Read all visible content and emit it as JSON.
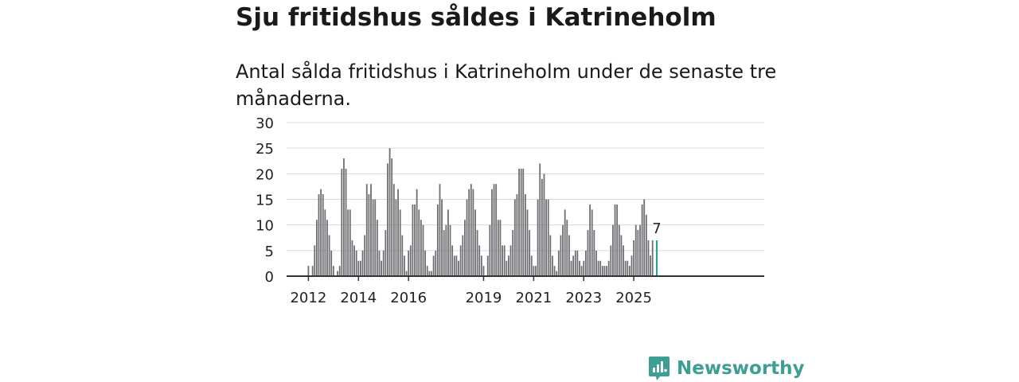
{
  "title": "Sju fritidshus såldes i Katrineholm",
  "subtitle": "Antal sålda fritidshus i Katrineholm under de senaste tre månaderna.",
  "brand": {
    "name": "Newsworthy",
    "icon": "newsworthy-logo-icon",
    "color": "#3d9e95"
  },
  "chart_data": {
    "type": "bar",
    "title": "Sju fritidshus såldes i Katrineholm",
    "subtitle": "Antal sålda fritidshus i Katrineholm under de senaste tre månaderna.",
    "xlabel": "",
    "ylabel": "",
    "ylim": [
      0,
      30
    ],
    "yticks": [
      0,
      5,
      10,
      15,
      20,
      25,
      30
    ],
    "xticks": [
      {
        "label": "2012",
        "at": "2012-01"
      },
      {
        "label": "2014",
        "at": "2014-01"
      },
      {
        "label": "2016",
        "at": "2016-01"
      },
      {
        "label": "2019",
        "at": "2019-01"
      },
      {
        "label": "2021",
        "at": "2021-01"
      },
      {
        "label": "2023",
        "at": "2023-01"
      },
      {
        "label": "2025",
        "at": "2025-01"
      }
    ],
    "grid": true,
    "bar_color": "#6e6e73",
    "highlight_color": "#2aa198",
    "first_month": "2012-01",
    "highlight": {
      "month": "2025-12",
      "value": 7,
      "label": "7"
    },
    "series": [
      {
        "values": [
          2,
          0,
          2,
          6,
          11,
          16,
          17,
          16,
          13,
          11,
          8,
          5,
          2,
          0,
          1,
          2,
          21,
          23,
          21,
          13,
          13,
          7,
          6,
          5,
          3,
          3,
          5,
          8,
          18,
          16,
          18,
          15,
          15,
          11,
          5,
          3,
          5,
          9,
          22,
          25,
          23,
          18,
          15,
          17,
          13,
          8,
          4,
          1,
          5,
          6,
          14,
          14,
          17,
          13,
          11,
          10,
          5,
          2,
          1,
          1,
          4,
          5,
          14,
          18,
          15,
          9,
          10,
          13,
          10,
          6,
          4,
          4,
          3,
          6,
          8,
          11,
          15,
          17,
          18,
          17,
          13,
          9,
          6,
          4,
          2,
          0,
          4,
          10,
          17,
          18,
          18,
          11,
          11,
          6,
          6,
          3,
          4,
          6,
          9,
          15,
          16,
          21,
          21,
          21,
          16,
          13,
          9,
          4,
          2,
          2,
          15,
          22,
          19,
          20,
          15,
          15,
          8,
          4,
          2,
          1,
          5,
          8,
          10,
          13,
          11,
          8,
          3,
          4,
          5,
          5,
          3,
          2,
          3,
          5,
          9,
          14,
          13,
          9,
          5,
          3,
          3,
          2,
          2,
          2,
          3,
          6,
          10,
          14,
          14,
          10,
          8,
          6,
          3,
          3,
          2,
          4,
          7,
          10,
          9,
          10,
          14,
          15,
          12,
          7,
          4,
          7
        ]
      }
    ]
  }
}
